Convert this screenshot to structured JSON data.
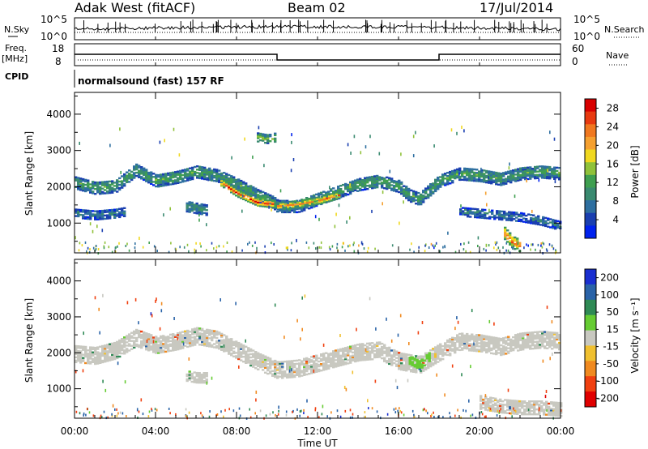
{
  "header": {
    "station": "Adak West (fitACF)",
    "beam": "Beam 02",
    "date": "17/Jul/2014"
  },
  "noise_panel": {
    "left_label": "N.Sky",
    "right_label": "N.Search",
    "left_ticks": [
      "10^5",
      "10^0"
    ],
    "right_ticks": [
      "10^5",
      "10^0"
    ]
  },
  "freq_panel": {
    "left_label_1": "Freq.",
    "left_label_2": "[MHz]",
    "right_label": "Nave",
    "left_ticks": [
      "18",
      "8"
    ],
    "right_ticks": [
      "60",
      "0"
    ]
  },
  "cpid": {
    "label": "CPID",
    "value": "normalsound (fast) 157 RF"
  },
  "time_axis": {
    "xlabel": "Time UT",
    "ticks": [
      "00:00",
      "04:00",
      "08:00",
      "12:00",
      "16:00",
      "20:00",
      "00:00"
    ],
    "range_hours": [
      0,
      24
    ]
  },
  "range_axis": {
    "ylabel": "Slant Range [km]",
    "ticks": [
      "1000",
      "2000",
      "3000",
      "4000"
    ],
    "ylim_km": [
      180,
      4600
    ]
  },
  "power_colorbar": {
    "label": "Power [dB]",
    "ticks": [
      "4",
      "8",
      "12",
      "16",
      "20",
      "24",
      "28"
    ],
    "range": [
      0,
      30
    ],
    "colors": [
      "#0022ee",
      "#1a3fb0",
      "#2e6fa0",
      "#3a8a70",
      "#3f9f50",
      "#90c23a",
      "#f0d820",
      "#f5a030",
      "#f07820",
      "#e83a10",
      "#d80000"
    ]
  },
  "velocity_colorbar": {
    "label": "Velocity [m s⁻¹]",
    "ticks": [
      "200",
      "100",
      "50",
      "15",
      "-15",
      "-50",
      "-100",
      "-200"
    ],
    "colors": [
      "#1a2fd0",
      "#2a63a8",
      "#2f8a55",
      "#66cc33",
      "#c8c8c0",
      "#f0c030",
      "#f08a20",
      "#f04010",
      "#e00000"
    ]
  },
  "chart_data": {
    "type": "heatmap",
    "panels": [
      {
        "name": "power",
        "x_unit": "hours UT",
        "y_unit": "km",
        "bands": [
          {
            "x": [
              0.0,
              1.0,
              2.0,
              3.0,
              4.0,
              5.0,
              6.0,
              7.0,
              8.0,
              9.0,
              9.8,
              10.0,
              11.0,
              12.0,
              13.0,
              14.0,
              15.0,
              16.0,
              16.5,
              17.0,
              17.5,
              18.0,
              19.0,
              20.0,
              21.0,
              22.0,
              23.0,
              24.0
            ],
            "y": [
              2100,
              1950,
              2000,
              2450,
              2150,
              2250,
              2400,
              2300,
              2050,
              1750,
              1550,
              1450,
              1450,
              1650,
              1850,
              2050,
              2150,
              2000,
              1750,
              1650,
              1900,
              2150,
              2350,
              2300,
              2200,
              2350,
              2400,
              2350
            ],
            "half_width": 170,
            "value": 12
          },
          {
            "x": [
              7.2,
              8.0,
              9.0,
              9.8
            ],
            "y": [
              2100,
              1800,
              1550,
              1500
            ],
            "half_width": 90,
            "value": 26
          },
          {
            "x": [
              10.0,
              11.0,
              12.0,
              13.0
            ],
            "y": [
              1450,
              1500,
              1600,
              1750
            ],
            "half_width": 90,
            "value": 22
          },
          {
            "x": [
              0.0,
              1.0,
              2.0,
              2.5
            ],
            "y": [
              1250,
              1200,
              1250,
              1300
            ],
            "half_width": 120,
            "value": 8
          },
          {
            "x": [
              5.5,
              6.0,
              6.5
            ],
            "y": [
              1450,
              1400,
              1350
            ],
            "half_width": 150,
            "value": 10
          },
          {
            "x": [
              9.0,
              9.5,
              9.9
            ],
            "y": [
              3350,
              3300,
              3350
            ],
            "half_width": 120,
            "value": 14
          },
          {
            "x": [
              19.0,
              20.0,
              21.0,
              22.0,
              23.0,
              24.0
            ],
            "y": [
              1300,
              1250,
              1200,
              1150,
              1050,
              900
            ],
            "half_width": 120,
            "value": 8
          },
          {
            "x": [
              21.2,
              21.6,
              22.0
            ],
            "y": [
              700,
              450,
              350
            ],
            "half_width": 160,
            "value": 24
          }
        ]
      },
      {
        "name": "velocity",
        "x_unit": "hours UT",
        "y_unit": "km",
        "bands": [
          {
            "x": [
              0.0,
              1.0,
              2.0,
              3.0,
              4.0,
              5.0,
              6.0,
              7.0,
              8.0,
              9.0,
              9.8,
              10.0,
              11.0,
              12.0,
              13.0,
              14.0,
              15.0,
              16.0,
              17.0,
              18.0,
              19.0,
              20.0,
              21.0,
              22.0,
              23.0,
              24.0
            ],
            "y": [
              1950,
              1900,
              2050,
              2400,
              2200,
              2300,
              2450,
              2350,
              2050,
              1750,
              1550,
              1500,
              1550,
              1700,
              1850,
              2000,
              2050,
              1750,
              1650,
              2000,
              2300,
              2250,
              2150,
              2300,
              2350,
              2300
            ],
            "half_width": 230,
            "value": 0
          },
          {
            "x": [
              16.5,
              17.0,
              17.5
            ],
            "y": [
              1800,
              1650,
              1900
            ],
            "half_width": 130,
            "value": 30
          },
          {
            "x": [
              5.5,
              6.0,
              6.5
            ],
            "y": [
              1350,
              1300,
              1300
            ],
            "half_width": 150,
            "value": 0
          },
          {
            "x": [
              20.0,
              21.0,
              22.0,
              23.0,
              24.0
            ],
            "y": [
              600,
              500,
              450,
              450,
              400
            ],
            "half_width": 180,
            "value": 0
          }
        ]
      }
    ]
  }
}
